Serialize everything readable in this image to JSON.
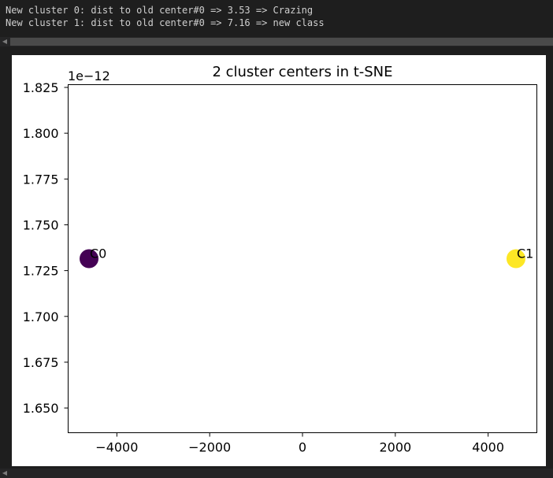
{
  "console": {
    "lines": [
      "New cluster 0: dist to old center#0 => 3.53 => Crazing",
      "New cluster 1: dist to old center#0 => 7.16 => new class"
    ]
  },
  "chart_data": {
    "type": "scatter",
    "title": "2 cluster centers in t-SNE",
    "xlabel": "",
    "ylabel": "",
    "y_offset_label": "1e−12",
    "xlim": [
      -5050,
      5050
    ],
    "ylim": [
      1.6365e-12,
      1.8265e-12
    ],
    "grid": false,
    "x_ticks": [
      -4000,
      -2000,
      0,
      2000,
      4000
    ],
    "x_tick_labels": [
      "−4000",
      "−2000",
      "0",
      "2000",
      "4000"
    ],
    "y_ticks": [
      1.65e-12,
      1.675e-12,
      1.7e-12,
      1.725e-12,
      1.75e-12,
      1.775e-12,
      1.8e-12,
      1.825e-12
    ],
    "y_tick_labels": [
      "1.650",
      "1.675",
      "1.700",
      "1.725",
      "1.750",
      "1.775",
      "1.800",
      "1.825"
    ],
    "points": [
      {
        "label": "C0",
        "x": -4600,
        "y": 1.7315e-12,
        "color": "#440154"
      },
      {
        "label": "C1",
        "x": 4600,
        "y": 1.7315e-12,
        "color": "#fde725"
      }
    ]
  }
}
